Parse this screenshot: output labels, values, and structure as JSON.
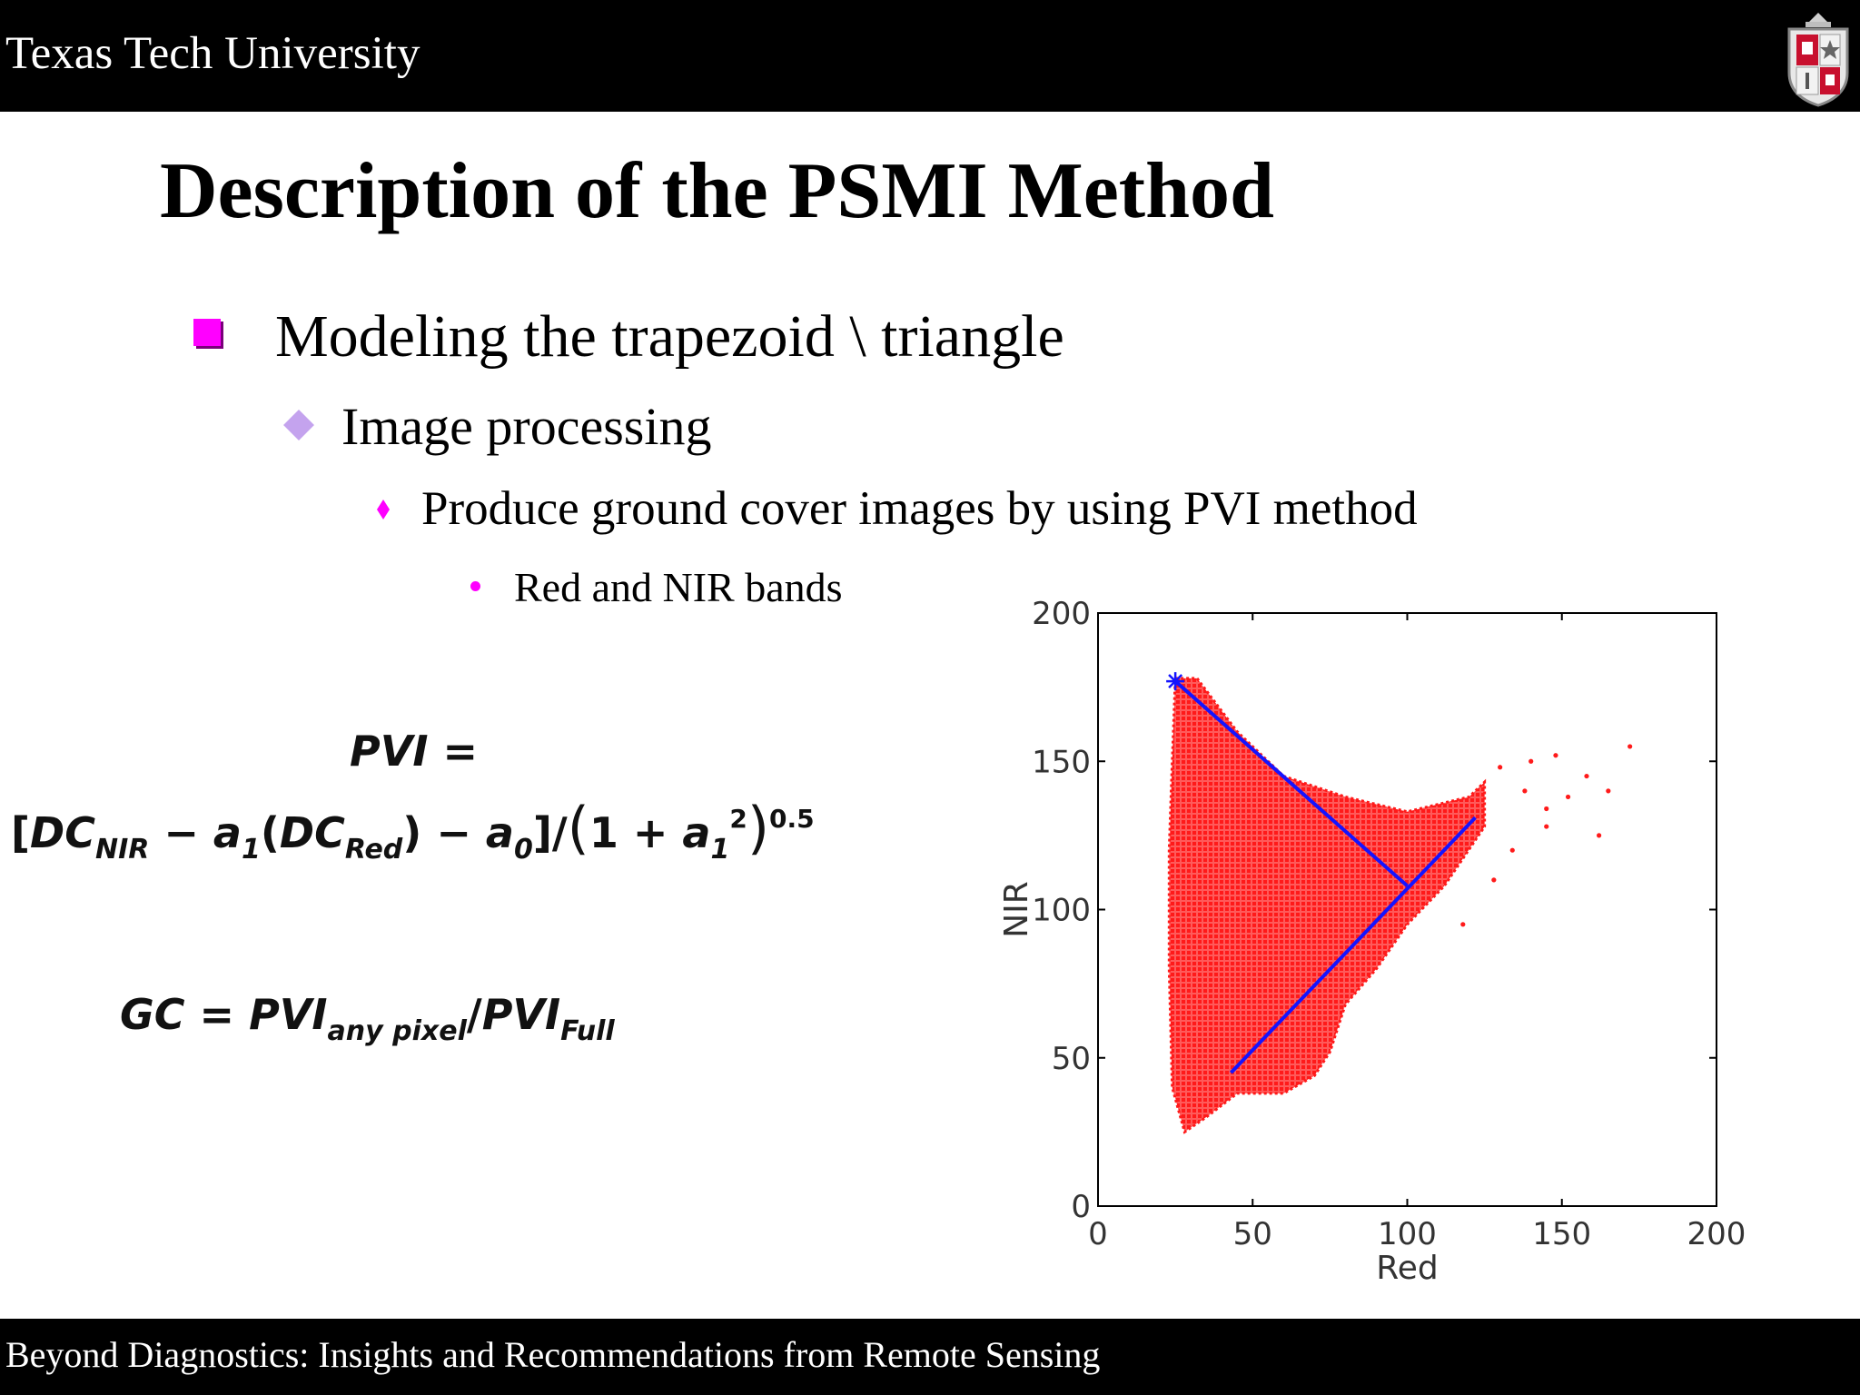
{
  "header": {
    "university": "Texas Tech University"
  },
  "title": "Description of the PSMI Method",
  "bullets": {
    "level1": "Modeling the trapezoid \\ triangle",
    "level2": "Image processing",
    "level3": "Produce ground cover images by using PVI method",
    "level4": "Red and NIR bands"
  },
  "formulas": {
    "pvi_lhs": "PVI =",
    "gc": "GC = PVI any pixel / PVI Full"
  },
  "colors": {
    "header_bg": "#000000",
    "bullet_magenta": "#ff00ff",
    "bullet_lavender": "#c4a3ee",
    "scatter_red": "#ff1a1a",
    "line_blue": "#1414ff"
  },
  "icons": {
    "logo": "texas-tech-shield-logo",
    "level1_bullet": "square-bullet",
    "level2_bullet": "diamond-bullet",
    "level3_bullet": "small-diamond-bullet",
    "level4_bullet": "dot-bullet"
  },
  "chart_data": {
    "type": "scatter",
    "xlabel": "Red",
    "ylabel": "NIR",
    "xlim": [
      0,
      200
    ],
    "ylim": [
      0,
      200
    ],
    "xticks": [
      "0",
      "50",
      "100",
      "150",
      "200"
    ],
    "yticks": [
      "0",
      "50",
      "100",
      "150",
      "200"
    ],
    "grid": false,
    "scatter_region": {
      "description_points": [
        [
          25,
          178
        ],
        [
          32,
          178
        ],
        [
          45,
          160
        ],
        [
          60,
          145
        ],
        [
          80,
          138
        ],
        [
          100,
          133
        ],
        [
          120,
          138
        ],
        [
          125,
          143
        ],
        [
          125,
          128
        ],
        [
          112,
          108
        ],
        [
          100,
          95
        ],
        [
          90,
          80
        ],
        [
          80,
          68
        ],
        [
          75,
          52
        ],
        [
          70,
          44
        ],
        [
          60,
          38
        ],
        [
          45,
          38
        ],
        [
          35,
          30
        ],
        [
          28,
          25
        ],
        [
          24,
          40
        ],
        [
          23,
          80
        ],
        [
          23,
          120
        ],
        [
          24,
          150
        ]
      ]
    },
    "outliers": [
      [
        130,
        148
      ],
      [
        138,
        140
      ],
      [
        145,
        134
      ],
      [
        158,
        145
      ],
      [
        152,
        138
      ],
      [
        162,
        125
      ],
      [
        172,
        155
      ],
      [
        145,
        128
      ],
      [
        134,
        120
      ],
      [
        128,
        110
      ],
      [
        118,
        95
      ],
      [
        140,
        150
      ],
      [
        148,
        152
      ],
      [
        165,
        140
      ]
    ],
    "lines": [
      {
        "name": "",
        "points": [
          [
            25,
            177
          ],
          [
            100,
            108
          ]
        ]
      },
      {
        "name": "",
        "points": [
          [
            43,
            45
          ],
          [
            122,
            131
          ]
        ]
      }
    ],
    "markers": [
      {
        "symbol": "*",
        "x": 25,
        "y": 177
      }
    ]
  },
  "footer": {
    "text": "Beyond Diagnostics:  Insights and Recommendations from Remote Sensing"
  }
}
